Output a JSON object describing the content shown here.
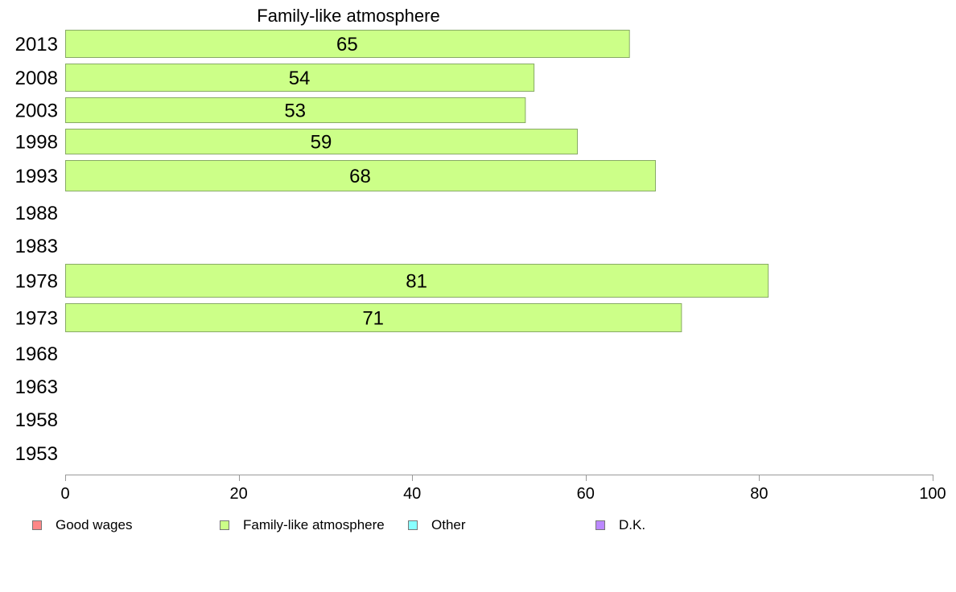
{
  "chart_data": {
    "type": "bar",
    "orientation": "horizontal",
    "title": "Family-like atmosphere",
    "xlabel": "",
    "ylabel": "",
    "xlim": [
      0,
      100
    ],
    "xticks": [
      0,
      20,
      40,
      60,
      80,
      100
    ],
    "categories": [
      "2013",
      "2008",
      "2003",
      "1998",
      "1993",
      "1988",
      "1983",
      "1978",
      "1973",
      "1968",
      "1963",
      "1958",
      "1953"
    ],
    "series": [
      {
        "name": "Family-like atmosphere",
        "color": "#ccff88",
        "values": [
          65,
          54,
          53,
          59,
          68,
          null,
          null,
          81,
          71,
          null,
          null,
          null,
          null
        ],
        "labels": [
          "65",
          "54",
          "53",
          "59",
          "68",
          "",
          "",
          "81",
          "71",
          "",
          "",
          "",
          ""
        ]
      }
    ],
    "grid": false,
    "legend_position": "bottom",
    "legend": [
      {
        "label": "Good wages",
        "color": "#ff8888"
      },
      {
        "label": "Family-like atmosphere",
        "color": "#ccff88"
      },
      {
        "label": "Other",
        "color": "#88ffff"
      },
      {
        "label": "D.K.",
        "color": "#bb88ff"
      }
    ]
  }
}
